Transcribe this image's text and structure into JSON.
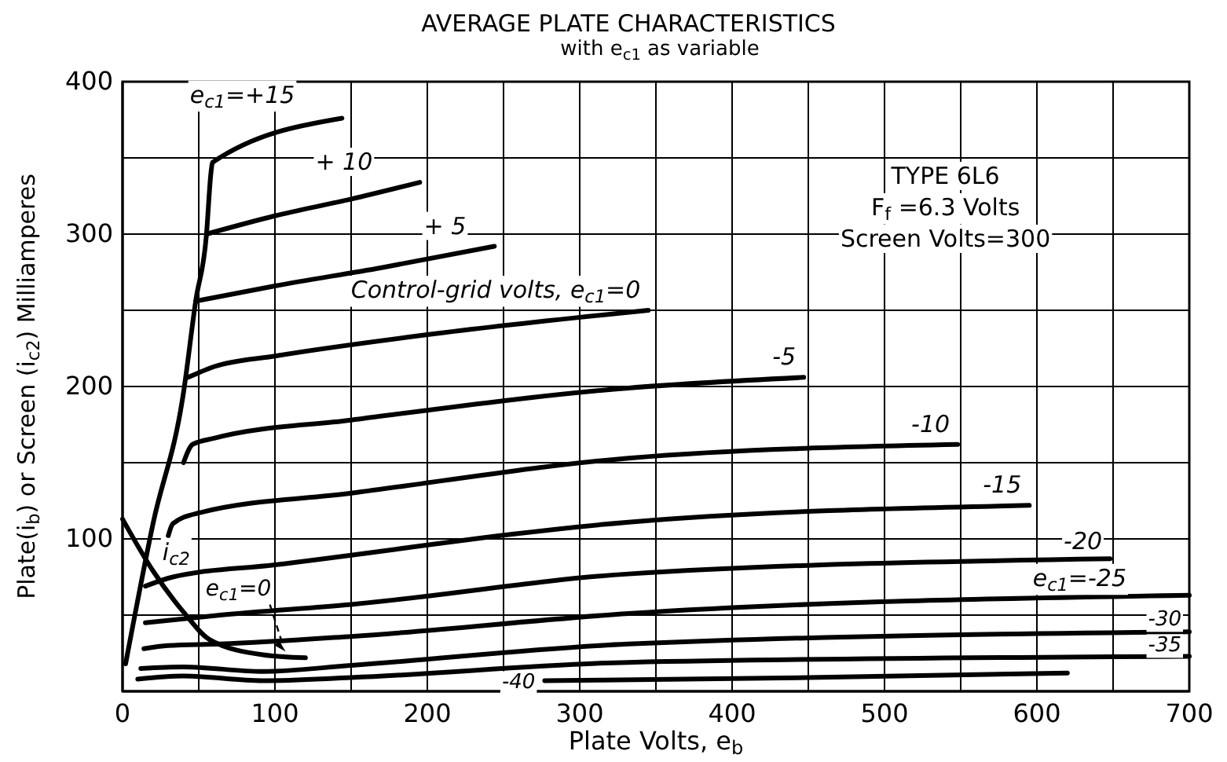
{
  "chart_data": {
    "type": "line",
    "title": "AVERAGE PLATE CHARACTERISTICS",
    "subtitle": "with e$_{c1}$ as variable",
    "xlabel": "Plate Volts, e$_{b}$",
    "ylabel": "Plate(i$_{b}$) or Screen (i$_{c2}$) Milliamperes",
    "xlim": [
      0,
      700
    ],
    "ylim": [
      0,
      400
    ],
    "xticks": [
      0,
      {
        "value": 50,
        "label": null
      },
      100,
      {
        "value": 150,
        "label": null
      },
      200,
      {
        "value": 250,
        "label": null
      },
      300,
      {
        "value": 350,
        "label": null
      },
      400,
      {
        "value": 450,
        "label": null
      },
      500,
      {
        "value": 550,
        "label": null
      },
      600,
      {
        "value": 650,
        "label": null
      },
      700
    ],
    "yticks": [
      {
        "value": 0,
        "label": null
      },
      {
        "value": 50,
        "label": null
      },
      100,
      {
        "value": 150,
        "label": null
      },
      200,
      {
        "value": 250,
        "label": null
      },
      300,
      {
        "value": 350,
        "label": null
      },
      400
    ],
    "grid": true,
    "legend": false,
    "marker": "none",
    "line_style": "solid",
    "annotations": [
      "TYPE 6L6",
      "F$_{f}$ =6.3 Volts",
      "Screen Volts=300",
      {
        "text": "e$_{c1}$=0",
        "x": 107,
        "y": 26
      }
    ],
    "series": [
      {
        "name": "e$_{c1}$=+15",
        "color": "#000000",
        "x": [
          2,
          20,
          40,
          48,
          55,
          58,
          59,
          144
        ],
        "values": [
          18,
          110,
          196,
          256,
          299,
          340,
          347,
          376
        ]
      },
      {
        "name": "+ 10",
        "color": "#000000",
        "x": [
          55,
          100,
          150,
          195
        ],
        "values": [
          300,
          312,
          323,
          334
        ]
      },
      {
        "name": "+ 5",
        "color": "#000000",
        "x": [
          48,
          100,
          170,
          244
        ],
        "values": [
          256,
          266,
          278,
          292
        ]
      },
      {
        "name": "Control-grid volts, e$_{c1}$=0",
        "color": "#000000",
        "x": [
          43,
          60,
          100,
          200,
          345
        ],
        "values": [
          206,
          213,
          220,
          234,
          250
        ]
      },
      {
        "name": "-5",
        "color": "#000000",
        "x": [
          40,
          46,
          60,
          150,
          332,
          447
        ],
        "values": [
          150,
          162,
          166,
          178,
          199,
          206
        ]
      },
      {
        "name": "-10",
        "color": "#000000",
        "x": [
          30,
          33,
          50,
          150,
          332,
          548
        ],
        "values": [
          102,
          110,
          117,
          130,
          153,
          162
        ]
      },
      {
        "name": "-15",
        "color": "#000000",
        "x": [
          15,
          33,
          100,
          332,
          595
        ],
        "values": [
          69,
          75,
          83,
          111,
          122
        ]
      },
      {
        "name": "-20",
        "color": "#000000",
        "x": [
          15,
          64,
          150,
          332,
          648
        ],
        "values": [
          45,
          50,
          57,
          77,
          87
        ]
      },
      {
        "name": "e$_{c1}$=-25",
        "color": "#000000",
        "x": [
          14,
          30,
          64,
          150,
          332,
          700
        ],
        "values": [
          28,
          30,
          31,
          36,
          51,
          63
        ]
      },
      {
        "name": "-30",
        "color": "#000000",
        "x": [
          12,
          40,
          92,
          150,
          332,
          700
        ],
        "values": [
          15,
          16,
          13,
          17,
          31,
          39
        ]
      },
      {
        "name": "-35",
        "color": "#000000",
        "x": [
          10,
          40,
          92,
          150,
          332,
          700
        ],
        "values": [
          8,
          10,
          7,
          9,
          19,
          23
        ]
      },
      {
        "name": "-40",
        "color": "#000000",
        "x": [
          277,
          450,
          620
        ],
        "values": [
          7,
          9,
          12
        ]
      },
      {
        "name": "i$_{c2}$",
        "color": "#000000",
        "x": [
          0,
          20,
          40,
          57,
          92,
          120
        ],
        "values": [
          113,
          79,
          52,
          34,
          24,
          22
        ]
      }
    ]
  }
}
